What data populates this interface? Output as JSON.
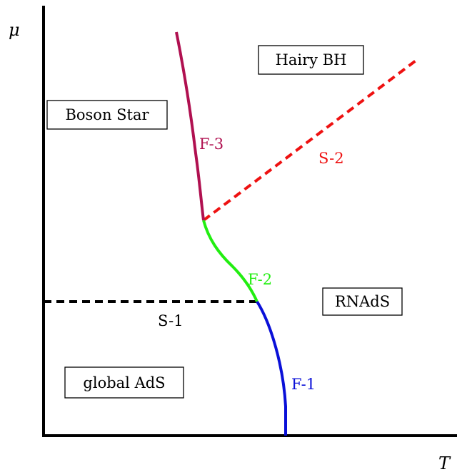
{
  "axes": {
    "y_symbol": "μ",
    "x_symbol": "T"
  },
  "regions": {
    "hairy_bh": "Hairy BH",
    "boson_star": "Boson Star",
    "rnads": "RNAdS",
    "global_ads": "global AdS"
  },
  "curves": {
    "f1": {
      "label": "F-1",
      "color": "#0a10d8"
    },
    "f2": {
      "label": "F-2",
      "color": "#22ee11"
    },
    "f3": {
      "label": "F-3",
      "color": "#b01050"
    },
    "s1": {
      "label": "S-1",
      "color": "#000000",
      "style": "dashed"
    },
    "s2": {
      "label": "S-2",
      "color": "#ee1111",
      "style": "dashed"
    }
  }
}
